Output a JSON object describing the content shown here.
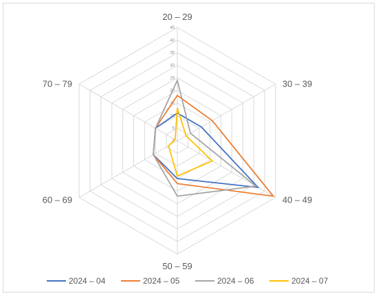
{
  "chart_data": {
    "type": "radar",
    "categories": [
      "20 – 29",
      "30 – 39",
      "40 – 49",
      "50 – 59",
      "60 – 69",
      "70 – 79"
    ],
    "rlim": [
      0,
      45
    ],
    "ticks": [
      0,
      5,
      10,
      15,
      20,
      25,
      30,
      35,
      40,
      45
    ],
    "grid": true,
    "legend_position": "bottom",
    "series": [
      {
        "name": "2024 – 04",
        "color": "#4472c4",
        "values": [
          11,
          11,
          37,
          15,
          11,
          10
        ]
      },
      {
        "name": "2024 – 05",
        "color": "#ed7d31",
        "values": [
          18,
          16,
          44,
          17,
          11,
          10
        ]
      },
      {
        "name": "2024 – 06",
        "color": "#a5a5a5",
        "values": [
          24,
          6,
          36,
          22,
          11,
          10
        ]
      },
      {
        "name": "2024 – 07",
        "color": "#ffc000",
        "values": [
          13,
          4,
          16,
          14,
          4,
          1
        ]
      }
    ]
  }
}
